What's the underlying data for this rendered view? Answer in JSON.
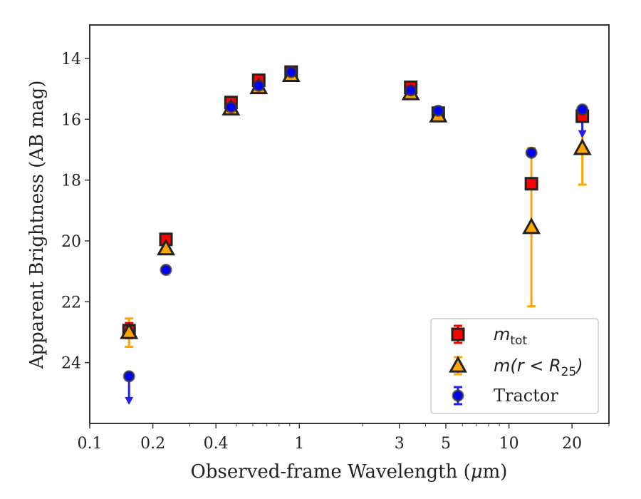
{
  "chart_data": {
    "type": "scatter",
    "xlabel_pre": "Observed-frame Wavelength (",
    "xlabel_mu": "μ",
    "xlabel_post": "m)",
    "ylabel": "Apparent Brightness (AB mag)",
    "xscale": "log",
    "xlim": [
      0.1,
      30
    ],
    "ylim": [
      26.0,
      12.9
    ],
    "y_inverted": true,
    "xticks": [
      {
        "value": 0.1,
        "label": "0.1"
      },
      {
        "value": 0.2,
        "label": "0.2"
      },
      {
        "value": 0.4,
        "label": "0.4"
      },
      {
        "value": 1,
        "label": "1"
      },
      {
        "value": 3,
        "label": "3"
      },
      {
        "value": 5,
        "label": "5"
      },
      {
        "value": 10,
        "label": "10"
      },
      {
        "value": 20,
        "label": "20"
      }
    ],
    "yticks": [
      {
        "value": 14,
        "label": "14"
      },
      {
        "value": 16,
        "label": "16"
      },
      {
        "value": 18,
        "label": "18"
      },
      {
        "value": 20,
        "label": "20"
      },
      {
        "value": 22,
        "label": "22"
      },
      {
        "value": 24,
        "label": "24"
      }
    ],
    "legend": {
      "placement": "lower-right",
      "entries": [
        {
          "key": "mtot",
          "label_main": "m",
          "label_sub": "tot"
        },
        {
          "key": "mr25",
          "label_main": "m(r < R",
          "label_sub": "25",
          "label_tail": ")"
        },
        {
          "key": "tractor",
          "label_main": "Tractor"
        }
      ]
    },
    "series": [
      {
        "key": "mtot",
        "marker": "square",
        "face_color": "#ff0000",
        "edge_color": "#222222",
        "err_color": "#ff0000",
        "points": [
          {
            "x": 0.154,
            "y": 22.95,
            "err": 0.25
          },
          {
            "x": 0.231,
            "y": 19.95,
            "err": 0.0
          },
          {
            "x": 0.472,
            "y": 15.45,
            "err": 0.0
          },
          {
            "x": 0.64,
            "y": 14.72,
            "err": 0.0
          },
          {
            "x": 0.914,
            "y": 14.45,
            "err": 0.0
          },
          {
            "x": 3.4,
            "y": 14.95,
            "err": 0.0
          },
          {
            "x": 4.6,
            "y": 15.8,
            "err": 0.0
          },
          {
            "x": 12.8,
            "y": 18.12,
            "err": 0.0
          },
          {
            "x": 22.4,
            "y": 15.9,
            "err": 0.0
          }
        ]
      },
      {
        "key": "mr25",
        "marker": "triangle",
        "face_color": "#ffa500",
        "edge_color": "#222222",
        "err_color": "#ffa500",
        "points": [
          {
            "x": 0.154,
            "y": 23.0,
            "err_lo": 0.45,
            "err_hi": 0.48
          },
          {
            "x": 0.231,
            "y": 20.25,
            "err_lo": 0,
            "err_hi": 0
          },
          {
            "x": 0.472,
            "y": 15.65,
            "err_lo": 0,
            "err_hi": 0
          },
          {
            "x": 0.64,
            "y": 14.95,
            "err_lo": 0,
            "err_hi": 0
          },
          {
            "x": 0.914,
            "y": 14.55,
            "err_lo": 0,
            "err_hi": 0
          },
          {
            "x": 3.4,
            "y": 15.15,
            "err_lo": 0,
            "err_hi": 0
          },
          {
            "x": 4.6,
            "y": 15.88,
            "err_lo": 0,
            "err_hi": 0
          },
          {
            "x": 12.8,
            "y": 19.55,
            "err_lo": 2.6,
            "err_hi": 2.6
          },
          {
            "x": 22.4,
            "y": 16.95,
            "err_lo": 1.2,
            "err_hi": 1.2
          }
        ]
      },
      {
        "key": "tractor",
        "marker": "circle",
        "face_color": "#0000ff",
        "edge_color": "#333333",
        "err_color": "#2222ee",
        "points": [
          {
            "x": 0.154,
            "y": 24.45,
            "upper_limit": true
          },
          {
            "x": 0.231,
            "y": 20.95,
            "upper_limit": false
          },
          {
            "x": 0.472,
            "y": 15.6,
            "upper_limit": false
          },
          {
            "x": 0.64,
            "y": 14.9,
            "upper_limit": false
          },
          {
            "x": 0.914,
            "y": 14.45,
            "upper_limit": false
          },
          {
            "x": 3.4,
            "y": 15.05,
            "upper_limit": false
          },
          {
            "x": 4.6,
            "y": 15.72,
            "upper_limit": false
          },
          {
            "x": 12.8,
            "y": 17.1,
            "upper_limit": false
          },
          {
            "x": 22.4,
            "y": 15.68,
            "upper_limit": true
          }
        ]
      }
    ]
  }
}
